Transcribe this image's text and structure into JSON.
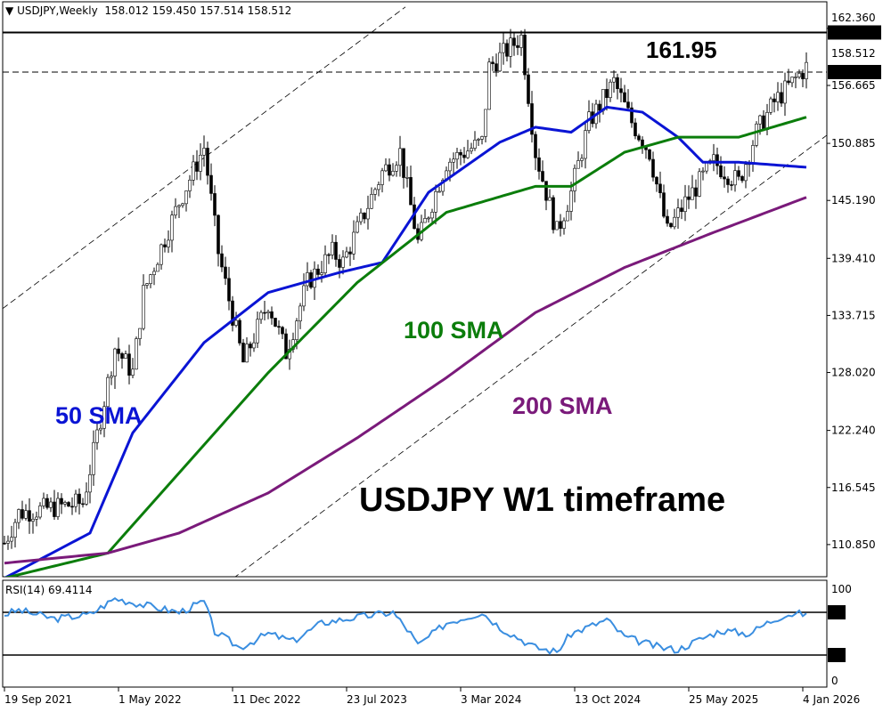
{
  "header": {
    "arrow": "▼",
    "symbol": "USDJPY,Weekly",
    "open": "158.012",
    "high": "159.450",
    "low": "157.514",
    "close": "158.512"
  },
  "rsi_label": "RSI(14) 69.4114",
  "chart_data": {
    "type": "candlestick",
    "title": "USDJPY W1 timeframe",
    "start_date": "19 Sep 2021",
    "x_unit": "weeks since 19 Sep 2021",
    "ylim": [
      107.2,
      163.0
    ],
    "y_ticks": [
      "162.360",
      "156.665",
      "150.885",
      "145.190",
      "139.410",
      "133.715",
      "128.020",
      "122.240",
      "116.545",
      "110.850"
    ],
    "x_ticks": [
      {
        "week": 0,
        "label": "19 Sep 2021"
      },
      {
        "week": 32,
        "label": "1 May 2022"
      },
      {
        "week": 64,
        "label": "11 Dec 2022"
      },
      {
        "week": 96,
        "label": "23 Jul 2023"
      },
      {
        "week": 128,
        "label": "3 Mar 2024"
      },
      {
        "week": 160,
        "label": "13 Oct 2024"
      },
      {
        "week": 192,
        "label": "25 May 2025"
      },
      {
        "week": 224,
        "label": "4 Jan 2026"
      }
    ],
    "price_path": [
      [
        0,
        111
      ],
      [
        4,
        114
      ],
      [
        22,
        115
      ],
      [
        25,
        120
      ],
      [
        31,
        130.5
      ],
      [
        36,
        128
      ],
      [
        39,
        136
      ],
      [
        49,
        145
      ],
      [
        56,
        150.5
      ],
      [
        60,
        140
      ],
      [
        67,
        129
      ],
      [
        74,
        135
      ],
      [
        79,
        130
      ],
      [
        85,
        137
      ],
      [
        92,
        140
      ],
      [
        95,
        139
      ],
      [
        106,
        148
      ],
      [
        111,
        150
      ],
      [
        116,
        141
      ],
      [
        124,
        149
      ],
      [
        134,
        151
      ],
      [
        136,
        158.5
      ],
      [
        145,
        161.5
      ],
      [
        149,
        150
      ],
      [
        155,
        142
      ],
      [
        159,
        146
      ],
      [
        164,
        153
      ],
      [
        171,
        157
      ],
      [
        176,
        153
      ],
      [
        181,
        150
      ],
      [
        186,
        142
      ],
      [
        191,
        145
      ],
      [
        199,
        149
      ],
      [
        206,
        147
      ],
      [
        211,
        152
      ],
      [
        216,
        155
      ],
      [
        225,
        158.5
      ]
    ],
    "series": [
      {
        "name": "50 SMA",
        "color": "#0a14d4",
        "points": [
          [
            0,
            107.5
          ],
          [
            24,
            112
          ],
          [
            36,
            122
          ],
          [
            56,
            131
          ],
          [
            74,
            136
          ],
          [
            94,
            138
          ],
          [
            106,
            139
          ],
          [
            119,
            146
          ],
          [
            139,
            151
          ],
          [
            149,
            152.5
          ],
          [
            159,
            152
          ],
          [
            169,
            154.5
          ],
          [
            179,
            154
          ],
          [
            189,
            151.5
          ],
          [
            196,
            149
          ],
          [
            206,
            149
          ],
          [
            225,
            148.5
          ]
        ]
      },
      {
        "name": "100 SMA",
        "color": "#0b7d0b",
        "points": [
          [
            0,
            107.5
          ],
          [
            29,
            110
          ],
          [
            49,
            118
          ],
          [
            74,
            128
          ],
          [
            99,
            137
          ],
          [
            124,
            144
          ],
          [
            149,
            146.6
          ],
          [
            159,
            146.6
          ],
          [
            174,
            150
          ],
          [
            189,
            151.5
          ],
          [
            206,
            151.5
          ],
          [
            225,
            153.5
          ]
        ]
      },
      {
        "name": "200 SMA",
        "color": "#7a1a7a",
        "points": [
          [
            0,
            109
          ],
          [
            29,
            110
          ],
          [
            49,
            112
          ],
          [
            74,
            116
          ],
          [
            99,
            121.5
          ],
          [
            124,
            127.5
          ],
          [
            149,
            134
          ],
          [
            174,
            138.5
          ],
          [
            199,
            142
          ],
          [
            225,
            145.5
          ]
        ]
      }
    ],
    "levels": [
      {
        "price": 161.95,
        "label": "161.950",
        "style": "solid"
      },
      {
        "price": 158.0,
        "label": "158.000",
        "style": "dashed"
      }
    ],
    "hidden_axis_label": "158.512",
    "channel_lines": [
      [
        [
          -0.5,
          134.4
        ],
        [
          112.5,
          164.5
        ]
      ],
      [
        [
          64.25,
          107.5
        ],
        [
          230.75,
          151.7
        ]
      ]
    ],
    "annotations": [
      {
        "text": "161.95",
        "color": "#000000"
      },
      {
        "text": "50 SMA",
        "color": "#0a14d4"
      },
      {
        "text": "100 SMA",
        "color": "#0b7d0b"
      },
      {
        "text": "200 SMA",
        "color": "#7a1a7a"
      },
      {
        "text": "USDJPY W1 timeframe",
        "color": "#000000"
      }
    ],
    "rsi": {
      "period": 14,
      "value": 69.4114,
      "levels": [
        "70",
        "30"
      ],
      "scale": [
        "100",
        "0"
      ],
      "color": "#3a8ee0",
      "points": [
        [
          0,
          68
        ],
        [
          4,
          72
        ],
        [
          14,
          64
        ],
        [
          24,
          68
        ],
        [
          31,
          83
        ],
        [
          39,
          77
        ],
        [
          49,
          70
        ],
        [
          56,
          80
        ],
        [
          59,
          52
        ],
        [
          66,
          37
        ],
        [
          74,
          50
        ],
        [
          81,
          43
        ],
        [
          89,
          60
        ],
        [
          96,
          64
        ],
        [
          109,
          70
        ],
        [
          114,
          50
        ],
        [
          116,
          39
        ],
        [
          124,
          60
        ],
        [
          134,
          70
        ],
        [
          139,
          56
        ],
        [
          149,
          37
        ],
        [
          155,
          33
        ],
        [
          159,
          50
        ],
        [
          169,
          63
        ],
        [
          174,
          47
        ],
        [
          184,
          37
        ],
        [
          189,
          35
        ],
        [
          194,
          43
        ],
        [
          201,
          53
        ],
        [
          209,
          50
        ],
        [
          214,
          60
        ],
        [
          219,
          68
        ],
        [
          225,
          69
        ]
      ]
    }
  }
}
